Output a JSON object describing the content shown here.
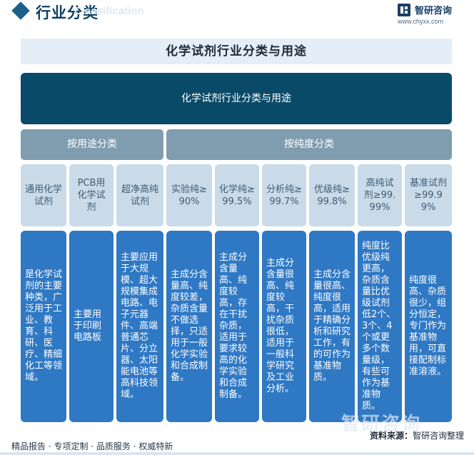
{
  "header": {
    "title": "行业分类",
    "title_en": "Classification"
  },
  "brand": {
    "name": "智研咨询",
    "url": "www.chyxx.com"
  },
  "main_title": "化学试剂行业分类与用途",
  "root_box": "化学试剂行业分类与用途",
  "groups": [
    {
      "label": "按用途分类"
    },
    {
      "label": "按纯度分类"
    }
  ],
  "categories": [
    {
      "name": "通用化学试剂",
      "description": "是化学试剂的主要种类，广泛用于工业、教育、科研、医疗、精细化工等领域。"
    },
    {
      "name": "PCB用化学试剂",
      "description": "主要用于印刷电路板"
    },
    {
      "name": "超净高纯试剂",
      "description": "主要应用于大规模、超大规模集成电路、电子元器件、高端普通芯片、分立器、太阳能电池等高科技领域。"
    },
    {
      "name": "实验纯≥90%",
      "description": "主成分含量高、纯度较差，杂质含量不做选择，只适用于一般化学实验和合成制备。"
    },
    {
      "name": "化学纯≥99.5%",
      "description": "主成分含量高、纯度较高，存在干扰杂质，适用于要求较高的化学实验和合成制备。"
    },
    {
      "name": "分析纯≥99.7%",
      "description": "主成分含量很高、纯度较高，干扰杂质很低，适用于一般科学研究及工业分析。"
    },
    {
      "name": "优级纯≥99.8%",
      "description": "主成分含量很高、纯度很高，适用于精确分析和研究工作，有的可作为基准物质。"
    },
    {
      "name": "高纯试剂≥99.99%",
      "description": "纯度比优级纯更高，杂质含量比优级试剂低2个、3个、4个或更多个数量级，有些可作为基准物质。"
    },
    {
      "name": "基准试剂≥99.99%",
      "description": "纯度很高、杂质很少，组分恒定，专门作为基准物用，可直接配制标准溶液。"
    }
  ],
  "footer": {
    "left": "精品报告 · 专项定制 · 品质服务 · 权威特新",
    "source_label": "资料来源：",
    "source_value": "智研咨询整理"
  },
  "watermark": "智研咨询",
  "colors": {
    "header_navy": "#0f3f63",
    "title_band": "#e3eef8",
    "root_box": "#0a4a69",
    "group_head": "#7f9daf",
    "category_box": "#c9dbe9",
    "description_box": "#2f78c4"
  }
}
